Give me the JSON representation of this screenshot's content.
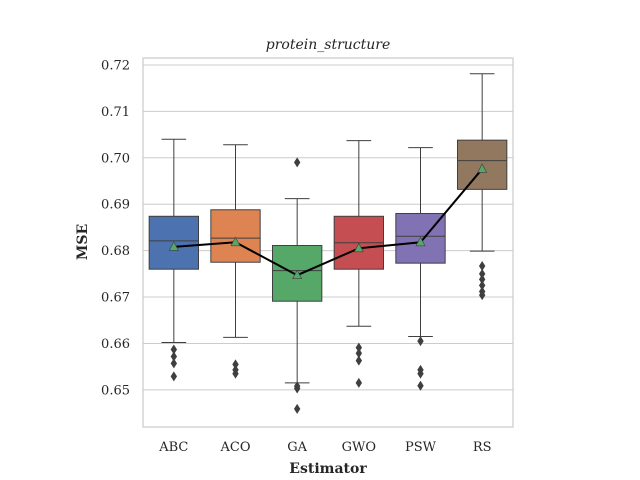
{
  "chart_data": {
    "type": "box",
    "title": "protein_structure",
    "xlabel": "Estimator",
    "ylabel": "MSE",
    "ylim": [
      0.642,
      0.7215
    ],
    "yticks": [
      "0.65",
      "0.66",
      "0.67",
      "0.68",
      "0.69",
      "0.70",
      "0.71",
      "0.72"
    ],
    "grid": true,
    "categories": [
      "ABC",
      "ACO",
      "GA",
      "GWO",
      "PSW",
      "RS"
    ],
    "boxes": [
      {
        "name": "ABC",
        "color": "#4c72b0",
        "whislo": 0.6602,
        "q1": 0.676,
        "med": 0.6821,
        "q3": 0.6874,
        "whishi": 0.704,
        "mean": 0.6808,
        "fliers": [
          0.6587,
          0.6572,
          0.6557,
          0.6529
        ]
      },
      {
        "name": "ACO",
        "color": "#dd8452",
        "whislo": 0.6613,
        "q1": 0.6775,
        "med": 0.6827,
        "q3": 0.6888,
        "whishi": 0.7028,
        "mean": 0.6818,
        "fliers": [
          0.6555,
          0.6543,
          0.6535
        ]
      },
      {
        "name": "GA",
        "color": "#55a868",
        "whislo": 0.6515,
        "q1": 0.6691,
        "med": 0.6757,
        "q3": 0.6811,
        "whishi": 0.6912,
        "mean": 0.6747,
        "fliers": [
          0.699,
          0.6508,
          0.6503,
          0.6459
        ]
      },
      {
        "name": "GWO",
        "color": "#c44e52",
        "whislo": 0.6637,
        "q1": 0.676,
        "med": 0.6817,
        "q3": 0.6874,
        "whishi": 0.7037,
        "mean": 0.6805,
        "fliers": [
          0.6591,
          0.6579,
          0.6563,
          0.6515
        ]
      },
      {
        "name": "PSW",
        "color": "#8172b3",
        "whislo": 0.6615,
        "q1": 0.6773,
        "med": 0.6831,
        "q3": 0.688,
        "whishi": 0.7022,
        "mean": 0.6818,
        "fliers": [
          0.6605,
          0.6543,
          0.6535,
          0.6509
        ]
      },
      {
        "name": "RS",
        "color": "#937860",
        "whislo": 0.6799,
        "q1": 0.6932,
        "med": 0.6994,
        "q3": 0.7038,
        "whishi": 0.7181,
        "mean": 0.6976,
        "fliers": [
          0.6767,
          0.675,
          0.6738,
          0.6725,
          0.6712,
          0.6704
        ]
      }
    ],
    "mean_line_color": "#000000",
    "mean_marker_color": "#55a868"
  }
}
